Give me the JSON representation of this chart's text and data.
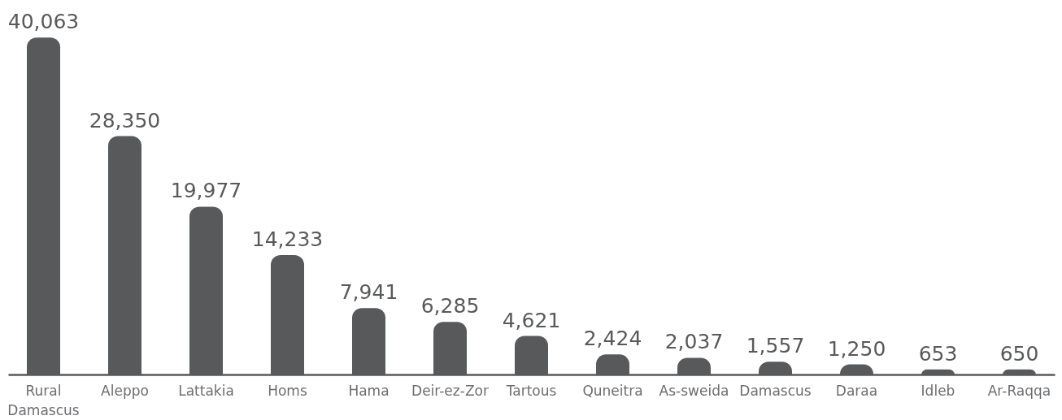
{
  "chart_data": {
    "type": "bar",
    "categories": [
      "Rural Damascus",
      "Aleppo",
      "Lattakia",
      "Homs",
      "Hama",
      "Deir-ez-Zor",
      "Tartous",
      "Quneitra",
      "As-sweida",
      "Damascus",
      "Daraa",
      "Idleb",
      "Ar-Raqqa"
    ],
    "values": [
      40063,
      28350,
      19977,
      14233,
      7941,
      6285,
      4621,
      2424,
      2037,
      1557,
      1250,
      653,
      650
    ],
    "value_labels": [
      "40,063",
      "28,350",
      "19,977",
      "14,233",
      "7,941",
      "6,285",
      "4,621",
      "2,424",
      "2,037",
      "1,557",
      "1,250",
      "653",
      "650"
    ],
    "color": "#58595b",
    "tick_labels": "x"
  }
}
